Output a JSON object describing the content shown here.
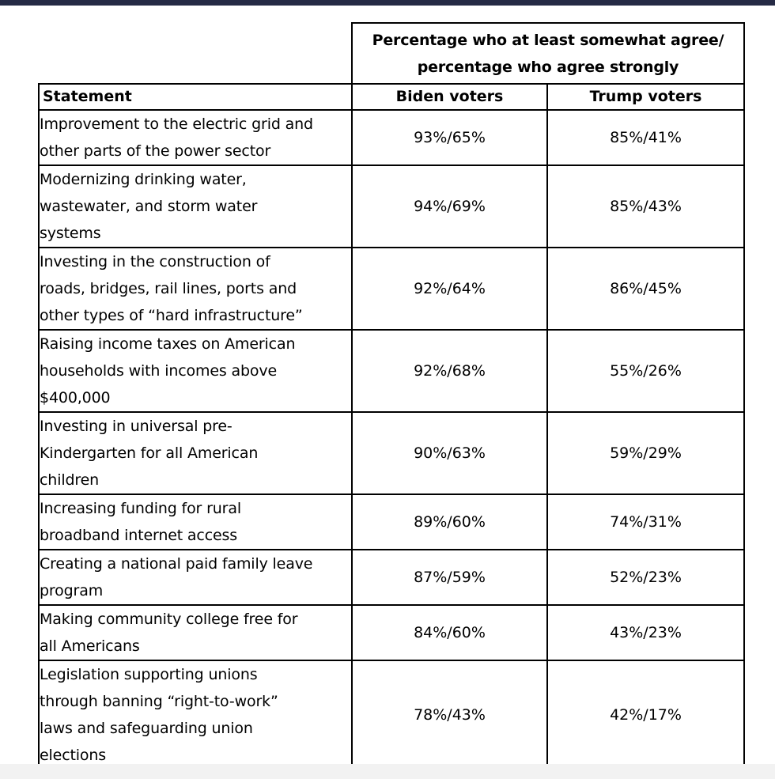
{
  "table": {
    "group_header": "Percentage who at least somewhat agree/\npercentage who agree strongly",
    "columns": {
      "statement": "Statement",
      "biden": "Biden voters",
      "trump": "Trump voters"
    },
    "rows": [
      {
        "statement": "Improvement to the electric grid and\nother parts of the power sector",
        "biden": "93%/65%",
        "trump": "85%/41%"
      },
      {
        "statement": "Modernizing drinking water,\nwastewater, and storm water\nsystems",
        "biden": "94%/69%",
        "trump": "85%/43%"
      },
      {
        "statement": "Investing in the construction of\nroads, bridges, rail lines, ports and\nother types of “hard infrastructure”",
        "biden": "92%/64%",
        "trump": "86%/45%"
      },
      {
        "statement": "Raising income taxes on American\nhouseholds with incomes above\n$400,000",
        "biden": "92%/68%",
        "trump": "55%/26%"
      },
      {
        "statement": "Investing in universal pre-\nKindergarten for all American\nchildren",
        "biden": "90%/63%",
        "trump": "59%/29%"
      },
      {
        "statement": "Increasing funding for rural\nbroadband internet access",
        "biden": "89%/60%",
        "trump": "74%/31%"
      },
      {
        "statement": "Creating a national paid family leave\nprogram",
        "biden": "87%/59%",
        "trump": "52%/23%"
      },
      {
        "statement": "Making community college free for\nall Americans",
        "biden": "84%/60%",
        "trump": "43%/23%"
      },
      {
        "statement": "Legislation supporting unions\nthrough banning “right-to-work”\nlaws and safeguarding union\nelections",
        "biden": "78%/43%",
        "trump": "42%/17%"
      }
    ]
  }
}
